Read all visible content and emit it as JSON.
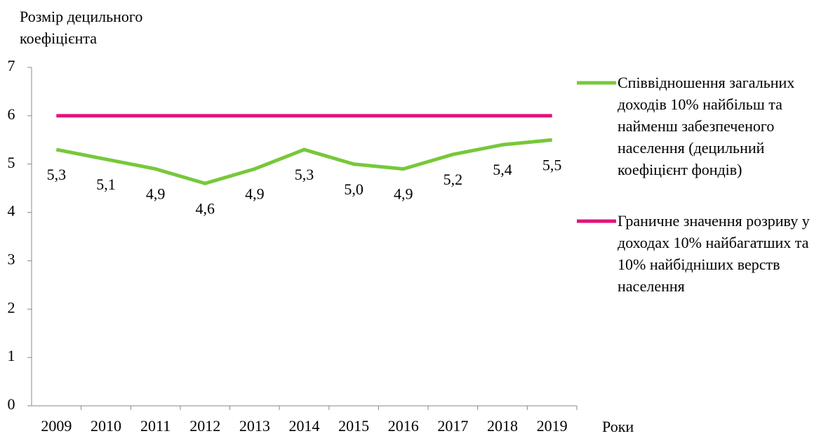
{
  "chart_data": {
    "type": "line",
    "ylabel": "Розмір децильного коефіцієнта",
    "xlabel": "Роки",
    "categories": [
      "2009",
      "2010",
      "2011",
      "2012",
      "2013",
      "2014",
      "2015",
      "2016",
      "2017",
      "2018",
      "2019"
    ],
    "series": [
      {
        "name": "Співвідношення загальних доходів 10% найбільш та найменш забезпеченого населення (децильний коефіцієнт фондів)",
        "color": "#77c83a",
        "values": [
          5.3,
          5.1,
          4.9,
          4.6,
          4.9,
          5.3,
          5.0,
          4.9,
          5.2,
          5.4,
          5.5
        ],
        "value_labels": [
          "5,3",
          "5,1",
          "4,9",
          "4,6",
          "4,9",
          "5,3",
          "5,0",
          "4,9",
          "5,2",
          "5,4",
          "5,5"
        ]
      },
      {
        "name": "Граничне значення розриву у доходах 10% найбагатших та 10% найбідніших верств населення",
        "color": "#e0157a",
        "values": [
          6,
          6,
          6,
          6,
          6,
          6,
          6,
          6,
          6,
          6,
          6
        ]
      }
    ],
    "ylim": [
      0,
      7
    ],
    "yticks": [
      0,
      1,
      2,
      3,
      4,
      5,
      6,
      7
    ],
    "legend": "right"
  }
}
